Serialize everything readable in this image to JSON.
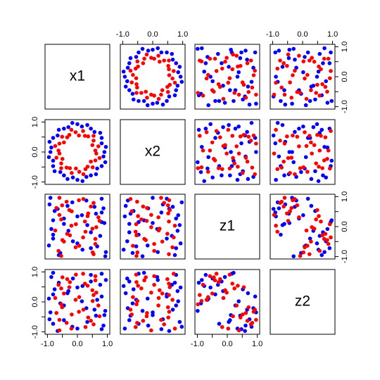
{
  "chart_data": {
    "type": "scatter-matrix",
    "variables": [
      "x1",
      "x2",
      "z1",
      "z2"
    ],
    "lim": [
      -1.08,
      1.08
    ],
    "ticks": [
      -1,
      -0.5,
      0,
      0.5,
      1
    ],
    "tick_labels": [
      {
        "value": -1,
        "label": "-1.0"
      },
      {
        "value": 0,
        "label": "0.0"
      },
      {
        "value": 1,
        "label": "1.0"
      }
    ],
    "series": [
      {
        "color": "#0000ff",
        "columns": [
          [
            0.9,
            0.95,
            0.81,
            0.81,
            0.76,
            0.57,
            0.45,
            0.33,
            0.15,
            0.0,
            -0.17,
            -0.3,
            -0.45,
            -0.62,
            -0.66,
            -0.81,
            -0.93,
            -0.87,
            -0.9,
            -0.95,
            -0.81,
            -0.81,
            -0.76,
            -0.57,
            -0.45,
            -0.33,
            -0.15,
            0.0,
            0.17,
            0.3,
            0.45,
            0.62,
            0.66,
            0.81,
            0.93,
            0.87
          ],
          [
            0.0,
            0.17,
            0.29,
            0.47,
            0.64,
            0.67,
            0.78,
            0.9,
            0.85,
            0.93,
            0.97,
            0.83,
            0.78,
            0.74,
            0.55,
            0.47,
            0.34,
            0.15,
            0.0,
            -0.17,
            -0.29,
            -0.47,
            -0.64,
            -0.67,
            -0.78,
            -0.9,
            -0.85,
            -0.93,
            -0.97,
            -0.83,
            -0.78,
            -0.74,
            -0.55,
            -0.47,
            -0.34,
            -0.15
          ],
          [
            0.12,
            -0.85,
            0.47,
            0.93,
            -0.31,
            0.66,
            -0.72,
            0.05,
            0.38,
            -0.56,
            0.81,
            -0.14,
            0.27,
            -0.95,
            0.59,
            -0.4,
            0.74,
            -0.08,
            0.96,
            -0.63,
            0.21,
            -0.27,
            0.52,
            -0.88,
            0.09,
            0.69,
            -0.49,
            0.34,
            -0.77,
            0.87,
            -0.19,
            0.43,
            -0.66,
            0.15,
            -0.99,
            0.61
          ],
          [
            -0.44,
            0.73,
            -0.91,
            0.18,
            0.57,
            -0.26,
            0.9,
            -0.67,
            0.02,
            0.48,
            -0.83,
            0.36,
            -0.12,
            0.64,
            -0.97,
            0.25,
            -0.58,
            0.83,
            -0.35,
            0.11,
            0.97,
            -0.73,
            0.42,
            -0.05,
            -0.61,
            0.29,
            0.78,
            -0.89,
            0.53,
            -0.21,
            0.68,
            -0.46,
            0.07,
            0.94,
            -0.3,
            -0.79
          ]
        ]
      },
      {
        "color": "#ff0000",
        "columns": [
          [
            0.6,
            0.7,
            0.5,
            0.54,
            0.54,
            0.36,
            0.25,
            0.19,
            0.05,
            -0.06,
            -0.2,
            -0.27,
            -0.34,
            -0.51,
            -0.45,
            -0.6,
            -0.74,
            -0.63,
            -0.6,
            -0.7,
            -0.5,
            -0.54,
            -0.54,
            -0.36,
            -0.25,
            -0.19,
            -0.05,
            0.06,
            0.2,
            0.27,
            0.34,
            0.51,
            0.45,
            0.6,
            0.74,
            0.63
          ],
          [
            0.05,
            0.19,
            0.23,
            0.38,
            0.54,
            0.52,
            0.54,
            0.7,
            0.55,
            0.66,
            0.74,
            0.57,
            0.49,
            0.51,
            0.32,
            0.28,
            0.2,
            0.05,
            -0.05,
            -0.19,
            -0.23,
            -0.38,
            -0.54,
            -0.52,
            -0.54,
            -0.7,
            -0.55,
            -0.66,
            -0.74,
            -0.57,
            -0.49,
            -0.51,
            -0.32,
            -0.28,
            -0.2,
            -0.05
          ],
          [
            -0.58,
            0.31,
            -0.07,
            0.79,
            -0.92,
            0.44,
            0.17,
            -0.36,
            0.88,
            -0.69,
            0.03,
            0.55,
            -0.24,
            0.71,
            -0.5,
            0.96,
            -0.13,
            -0.81,
            0.39,
            0.62,
            -0.45,
            0.24,
            -0.98,
            0.83,
            -0.29,
            0.51,
            0.08,
            -0.64,
            0.92,
            -0.17,
            0.35,
            -0.86,
            0.67,
            -0.41,
            0.19,
            -0.02
          ],
          [
            0.86,
            -0.12,
            0.39,
            -0.75,
            0.23,
            -0.52,
            0.61,
            0.94,
            -0.33,
            0.07,
            -0.89,
            0.49,
            0.76,
            -0.18,
            0.28,
            -0.6,
            0.13,
            0.57,
            -0.95,
            -0.37,
            0.82,
            0.45,
            -0.08,
            -0.7,
            0.66,
            -0.42,
            0.91,
            0.16,
            -0.26,
            -0.84,
            0.54,
            0.03,
            -0.63,
            0.72,
            -0.48,
            0.31
          ]
        ]
      }
    ]
  }
}
